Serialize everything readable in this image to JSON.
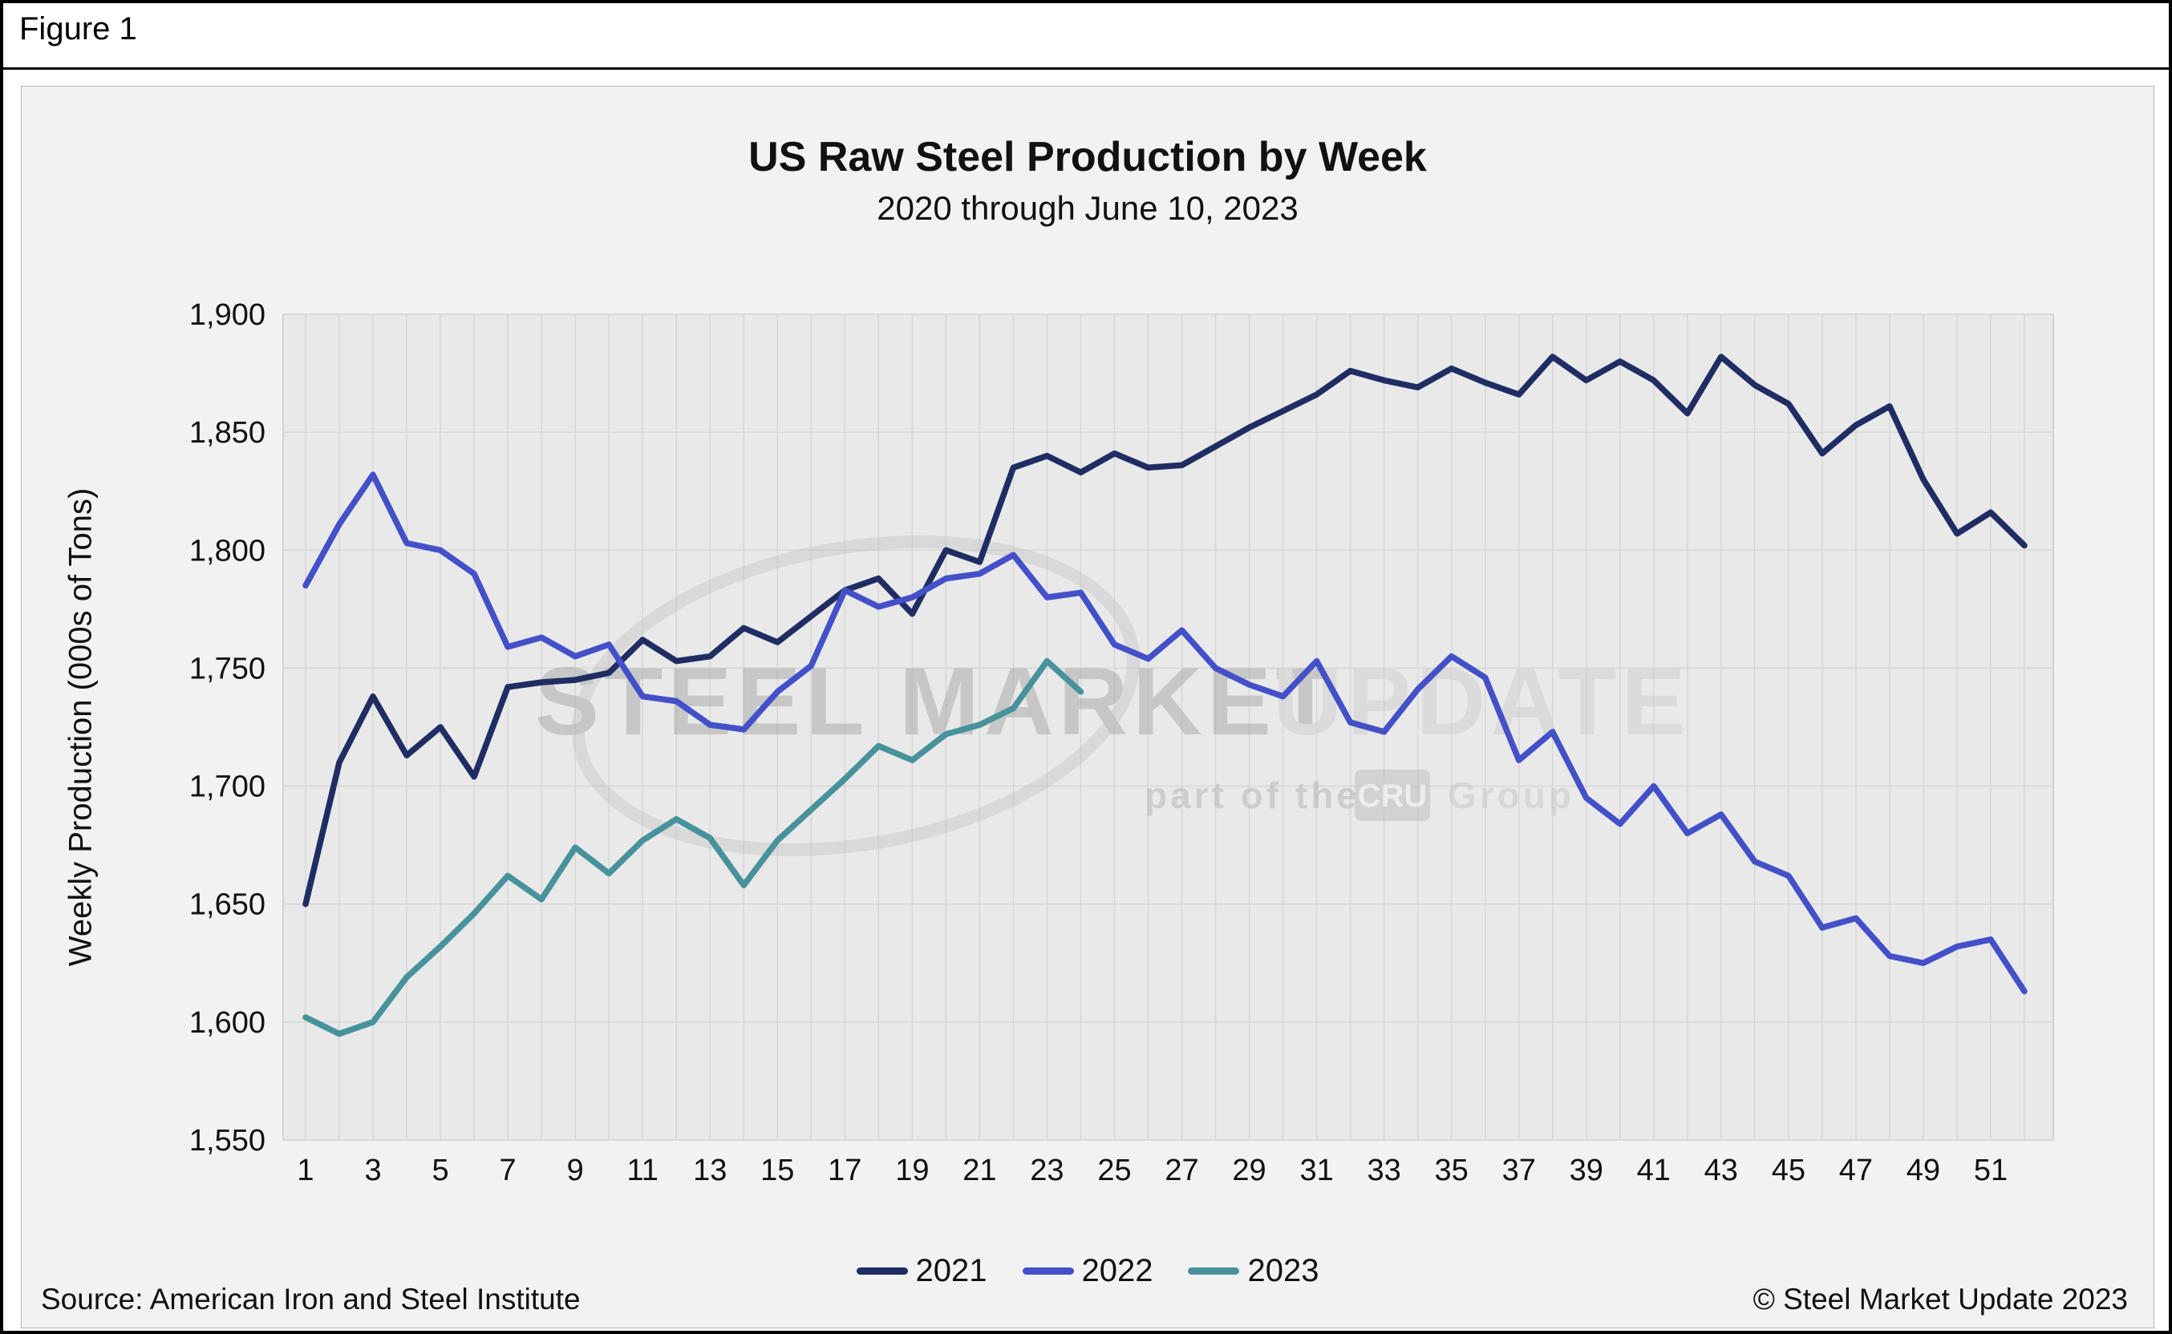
{
  "figure_label": "Figure 1",
  "footer": {
    "source": "Source: American Iron and Steel Institute",
    "copyright": "© Steel Market Update 2023"
  },
  "watermark": {
    "line1_bold": "STEEL MARKET",
    "line1_light": "UPDATE",
    "line2_prefix": "part of the",
    "line2_logo": "CRU",
    "line2_suffix": "Group"
  },
  "chart_data": {
    "type": "line",
    "title": "US Raw Steel Production by Week",
    "subtitle": "2020 through June 10, 2023",
    "xlabel": "",
    "ylabel": "Weekly Production (000s of Tons)",
    "ylim": [
      1550,
      1900
    ],
    "y_tick_step": 50,
    "y_ticks": [
      "1,550",
      "1,600",
      "1,650",
      "1,700",
      "1,750",
      "1,800",
      "1,850",
      "1,900"
    ],
    "x_range": [
      1,
      52
    ],
    "x_ticks": [
      1,
      3,
      5,
      7,
      9,
      11,
      13,
      15,
      17,
      19,
      21,
      23,
      25,
      27,
      29,
      31,
      33,
      35,
      37,
      39,
      41,
      43,
      45,
      47,
      49,
      51
    ],
    "grid": true,
    "legend_position": "bottom",
    "plot_bg": "#e9e9e9",
    "grid_color": "#d7d7d7",
    "series": [
      {
        "name": "2021",
        "color": "#1f2d63",
        "values": [
          1650,
          1710,
          1738,
          1713,
          1725,
          1704,
          1742,
          1744,
          1745,
          1748,
          1762,
          1753,
          1755,
          1767,
          1761,
          1772,
          1783,
          1788,
          1773,
          1800,
          1795,
          1835,
          1840,
          1833,
          1841,
          1835,
          1836,
          1844,
          1852,
          1859,
          1866,
          1876,
          1872,
          1869,
          1877,
          1871,
          1866,
          1882,
          1872,
          1880,
          1872,
          1858,
          1882,
          1870,
          1862,
          1841,
          1853,
          1861,
          1830,
          1807,
          1816,
          1802
        ]
      },
      {
        "name": "2022",
        "color": "#4450c8",
        "values": [
          1785,
          1811,
          1832,
          1803,
          1800,
          1790,
          1759,
          1763,
          1755,
          1760,
          1738,
          1736,
          1726,
          1724,
          1740,
          1751,
          1783,
          1776,
          1780,
          1788,
          1790,
          1798,
          1780,
          1782,
          1760,
          1754,
          1766,
          1750,
          1743,
          1738,
          1753,
          1727,
          1723,
          1741,
          1755,
          1746,
          1711,
          1723,
          1695,
          1684,
          1700,
          1680,
          1688,
          1668,
          1662,
          1640,
          1644,
          1628,
          1625,
          1632,
          1635,
          1613
        ]
      },
      {
        "name": "2023",
        "color": "#47929b",
        "values": [
          1602,
          1595,
          1600,
          1619,
          1632,
          1646,
          1662,
          1652,
          1674,
          1663,
          1677,
          1686,
          1678,
          1658,
          1677,
          1690,
          1703,
          1717,
          1711,
          1722,
          1726,
          1733,
          1753,
          1740
        ]
      }
    ]
  }
}
